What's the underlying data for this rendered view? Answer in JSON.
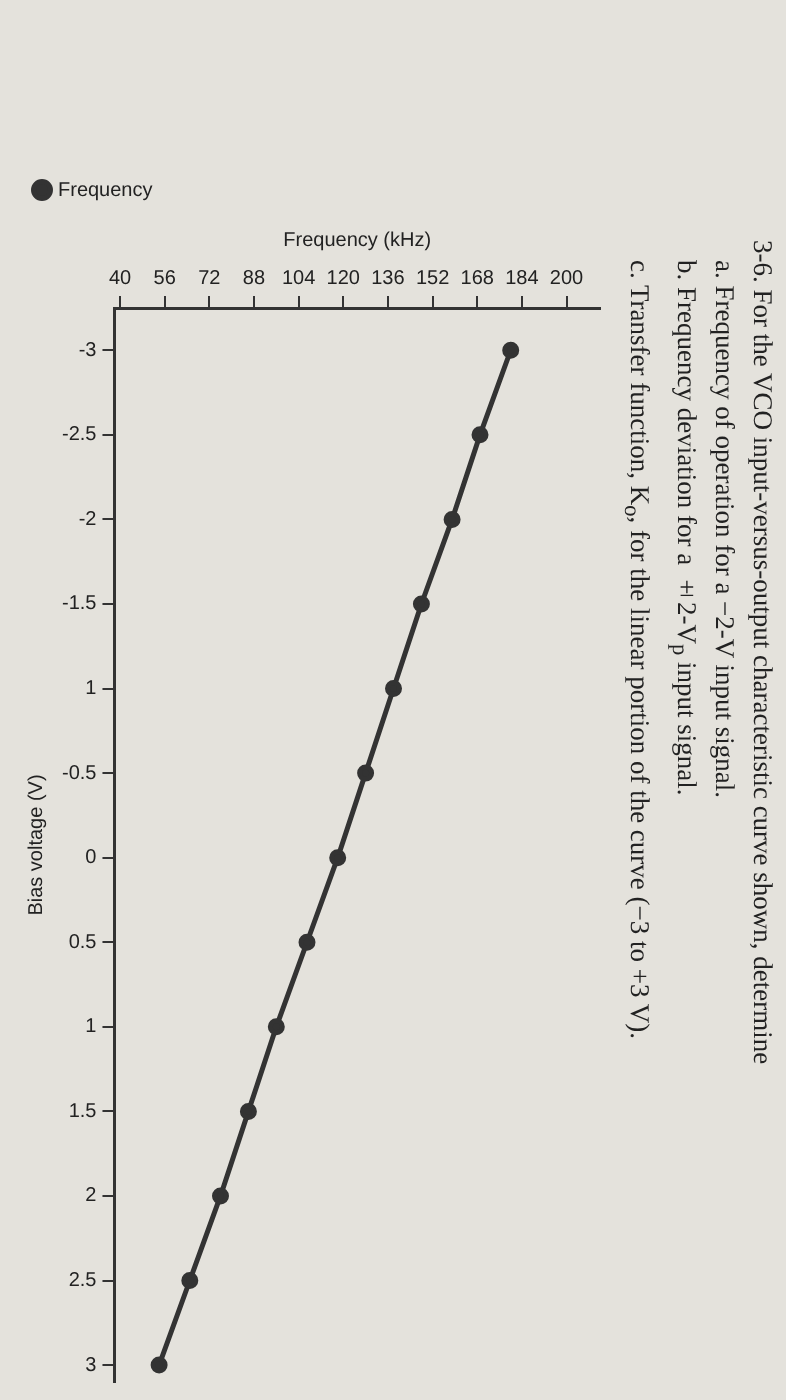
{
  "chart_data": {
    "type": "line",
    "title": "3-6. For the VCO input-versus-output characteristic curve shown, determine",
    "annotations": [
      "a. Frequency of operation for a −2-V input signal.",
      "b. Frequency deviation for a ±2-V$_{p}$ input signal.",
      "c. Transfer function, K$_{o}$, for the linear portion of the curve (−3 to +3 V)."
    ],
    "xlabel": "Frequency (kHz)",
    "ylabel": "Bias voltage (V)",
    "x": [
      180,
      169,
      159,
      148,
      138,
      128,
      118,
      107,
      96,
      86,
      76,
      65,
      54
    ],
    "series": [
      {
        "name": "Frequency",
        "color": "#333333",
        "values": [
          -3,
          -2.5,
          -2,
          -1.5,
          -1,
          -0.5,
          0,
          0.5,
          1,
          1.5,
          2,
          2.5,
          3
        ]
      }
    ],
    "xlim": [
      38,
      212
    ],
    "xticks": [
      40,
      56,
      72,
      88,
      104,
      120,
      136,
      152,
      168,
      184,
      200
    ],
    "ylim": [
      3.1,
      -3.25
    ],
    "yticks": [
      -3,
      -2.5,
      -2,
      -1.5,
      {
        "value": -1,
        "label": "1"
      },
      -0.5,
      0,
      0.5,
      1,
      1.5,
      2,
      2.5,
      3
    ],
    "legend": "top left",
    "marker": "circle",
    "line_style": "solid",
    "grid": false
  }
}
